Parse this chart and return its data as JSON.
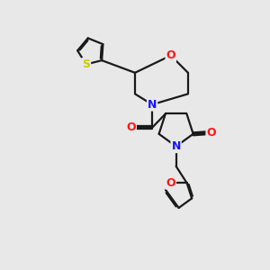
{
  "background_color": "#e8e8e8",
  "bond_color": "#1a1a1a",
  "N_color": "#1414ff",
  "O_color": "#ff1414",
  "S_color": "#cccc00",
  "lw": 1.6,
  "dbo": 0.05,
  "figsize": [
    3.0,
    3.0
  ],
  "dpi": 100,
  "xlim": [
    0,
    10
  ],
  "ylim": [
    0,
    10
  ]
}
